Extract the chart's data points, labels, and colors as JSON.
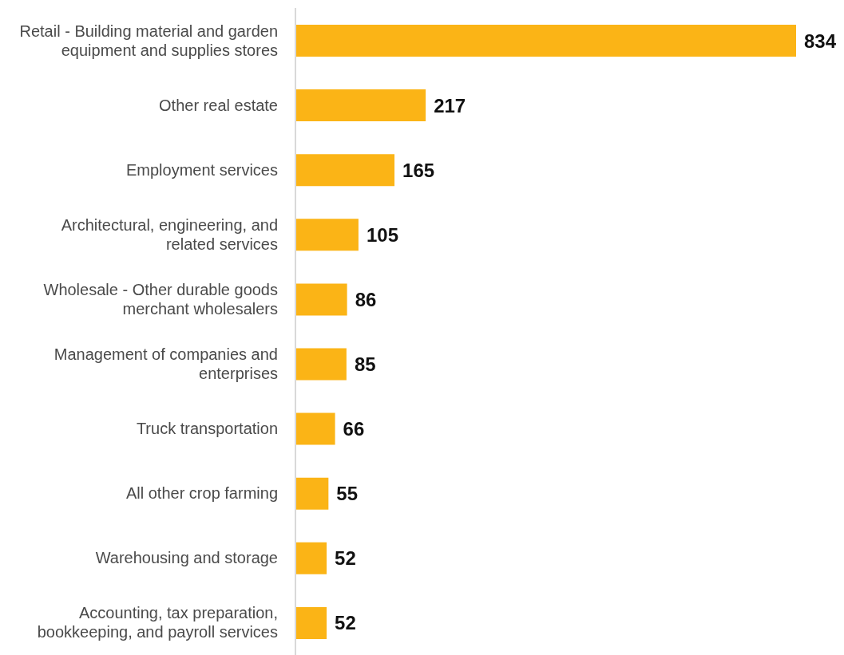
{
  "chart_data": {
    "type": "bar",
    "orientation": "horizontal",
    "categories": [
      "Retail - Building material and garden equipment and supplies stores",
      "Other real estate",
      "Employment services",
      "Architectural, engineering, and related services",
      "Wholesale - Other durable goods merchant wholesalers",
      "Management of companies and enterprises",
      "Truck transportation",
      "All other crop farming",
      "Warehousing and storage",
      "Accounting, tax preparation, bookkeeping, and payroll services"
    ],
    "values": [
      834,
      217,
      165,
      105,
      86,
      85,
      66,
      55,
      52,
      52
    ],
    "color": "#fbb416",
    "data_labels": true,
    "grid": false,
    "legend": false
  }
}
